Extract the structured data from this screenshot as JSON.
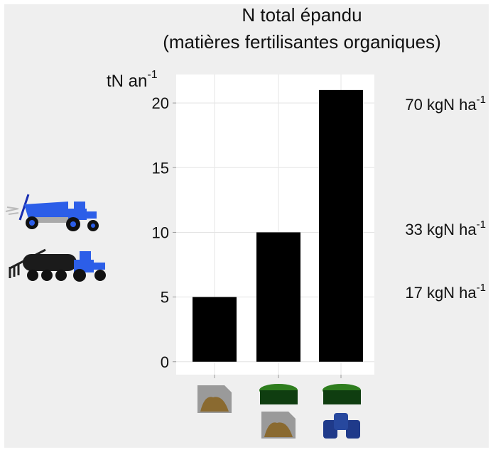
{
  "chart_data": {
    "type": "bar",
    "title": [
      "N total épandu",
      "(matières fertilisantes organiques)"
    ],
    "y_label": {
      "text": "tN an",
      "sup": "-1"
    },
    "categories": [
      null,
      null,
      null
    ],
    "values": [
      5,
      10,
      21
    ],
    "color": "#000000",
    "ylim": [
      -1,
      22.2
    ],
    "yticks": [
      0,
      5,
      10,
      15,
      20
    ],
    "grid": true,
    "annotations": [
      {
        "text": "17 kgN ha",
        "sup": "-1"
      },
      {
        "text": "33 kgN ha",
        "sup": "-1"
      },
      {
        "text": "70 kgN ha",
        "sup": "-1"
      }
    ]
  }
}
